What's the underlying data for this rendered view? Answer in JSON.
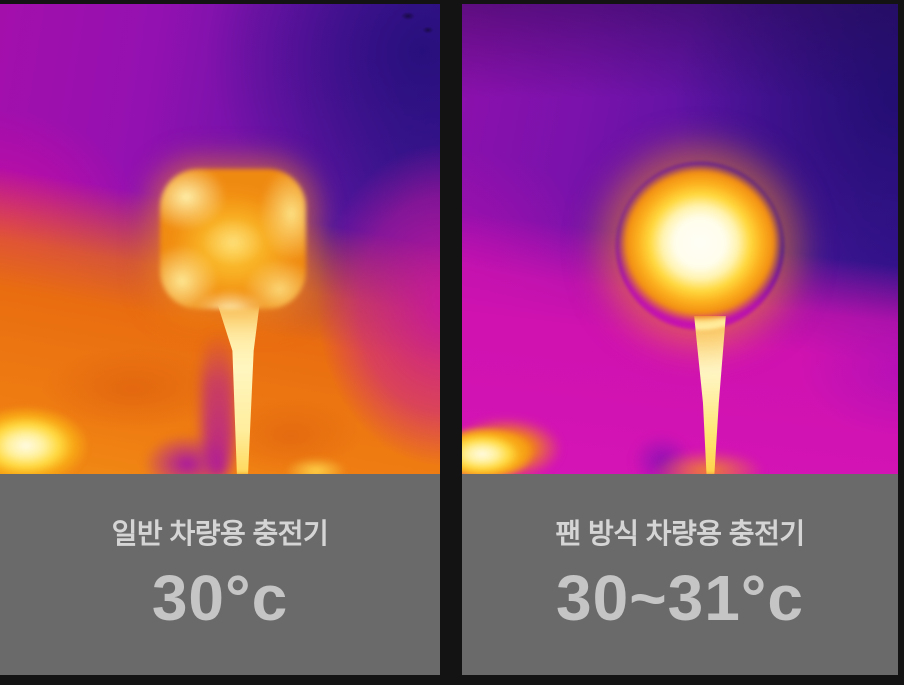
{
  "page": {
    "background_color": "#131313",
    "caption_background": "#6a6a6a",
    "label_color": "#d5d5d5",
    "temperature_color": "#c5c5c5"
  },
  "panels": [
    {
      "name": "standard-car-charger",
      "label": "일반 차량용 충전기",
      "temperature": "30°c",
      "thermal_palette": {
        "coldest": "#3a1390",
        "cool": "#a30fab",
        "warm": "#e96d10",
        "hot": "#f8ae22",
        "hottest": "#fff6c0"
      }
    },
    {
      "name": "fan-type-car-charger",
      "label": "팬 방식 차량용 충전기",
      "temperature": "30~31°c",
      "thermal_palette": {
        "coldest": "#31128a",
        "cool": "#8e10ad",
        "warm": "#d514b6",
        "hot": "#fcb01e",
        "hottest": "#fffef6"
      }
    }
  ]
}
